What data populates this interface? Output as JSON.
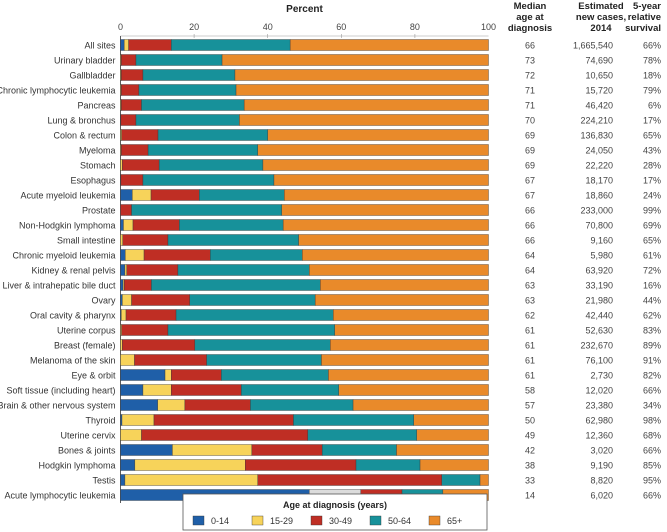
{
  "chart_data": {
    "type": "bar",
    "orientation": "horizontal-stacked",
    "title": "Percent",
    "xlim": [
      0,
      100
    ],
    "xticks": [
      0,
      20,
      40,
      60,
      80,
      100
    ],
    "grid": false,
    "legend": {
      "title": "Age at diagnosis (years)",
      "placement": "bottom"
    },
    "series": [
      {
        "name": "0-14",
        "color": "#1f5fa8"
      },
      {
        "name": "15-29",
        "color": "#f7d35a"
      },
      {
        "name": "30-49",
        "color": "#bf2e24"
      },
      {
        "name": "50-64",
        "color": "#17919a"
      },
      {
        "name": "65+",
        "color": "#e98a2a"
      }
    ],
    "columns": [
      "Median age at diagnosis",
      "Estimated new cases, 2014",
      "5-year relative survival"
    ],
    "column_headers": [
      [
        "Median",
        "age at",
        "diagnosis"
      ],
      [
        "Estimated",
        "new cases,",
        "2014"
      ],
      [
        "5-year",
        "relative",
        "survival"
      ]
    ],
    "rows": [
      {
        "label": "All sites",
        "values": [
          1,
          1.2,
          11.6,
          32.3,
          53.9
        ],
        "median_age": "66",
        "new_cases": "1,665,540",
        "survival": "66%"
      },
      {
        "label": "Urinary bladder",
        "values": [
          0,
          0.2,
          4,
          23.4,
          72.4
        ],
        "median_age": "73",
        "new_cases": "74,690",
        "survival": "78%"
      },
      {
        "label": "Gallbladder",
        "values": [
          0,
          0.2,
          5.9,
          25,
          68.9
        ],
        "median_age": "72",
        "new_cases": "10,650",
        "survival": "18%"
      },
      {
        "label": "Chronic lymphocytic leukemia",
        "values": [
          0,
          0.2,
          4.8,
          26.4,
          68.6
        ],
        "median_age": "71",
        "new_cases": "15,720",
        "survival": "79%"
      },
      {
        "label": "Pancreas",
        "values": [
          0,
          0.2,
          5.5,
          27.9,
          66.4
        ],
        "median_age": "71",
        "new_cases": "46,420",
        "survival": "6%"
      },
      {
        "label": "Lung & bronchus",
        "values": [
          0,
          0.1,
          4.1,
          28.1,
          67.7
        ],
        "median_age": "70",
        "new_cases": "224,210",
        "survival": "17%"
      },
      {
        "label": "Colon & rectum",
        "values": [
          0,
          0.3,
          9.9,
          29.8,
          60
        ],
        "median_age": "69",
        "new_cases": "136,830",
        "survival": "65%"
      },
      {
        "label": "Myeloma",
        "values": [
          0,
          0.2,
          7.3,
          29.8,
          62.7
        ],
        "median_age": "69",
        "new_cases": "24,050",
        "survival": "43%"
      },
      {
        "label": "Stomach",
        "values": [
          0,
          0.5,
          10,
          28.2,
          61.3
        ],
        "median_age": "69",
        "new_cases": "22,220",
        "survival": "28%"
      },
      {
        "label": "Esophagus",
        "values": [
          0,
          0.1,
          6,
          35.6,
          58.3
        ],
        "median_age": "67",
        "new_cases": "18,170",
        "survival": "17%"
      },
      {
        "label": "Acute myeloid leukemia",
        "values": [
          3.2,
          5.1,
          13.1,
          23.1,
          55.5
        ],
        "median_age": "67",
        "new_cases": "18,860",
        "survival": "24%"
      },
      {
        "label": "Prostate",
        "values": [
          0,
          0,
          3,
          40.8,
          56.2
        ],
        "median_age": "66",
        "new_cases": "233,000",
        "survival": "99%"
      },
      {
        "label": "Non-Hodgkin lymphoma",
        "values": [
          0.8,
          2.6,
          12.6,
          28.2,
          55.8
        ],
        "median_age": "66",
        "new_cases": "70,800",
        "survival": "69%"
      },
      {
        "label": "Small intestine",
        "values": [
          0,
          0.6,
          12.3,
          35.5,
          51.6
        ],
        "median_age": "66",
        "new_cases": "9,160",
        "survival": "65%"
      },
      {
        "label": "Chronic myeloid leukemia",
        "values": [
          1.3,
          5.1,
          18,
          25,
          50.6
        ],
        "median_age": "64",
        "new_cases": "5,980",
        "survival": "61%"
      },
      {
        "label": "Kidney & renal pelvis",
        "values": [
          1.2,
          0.5,
          13.9,
          35.7,
          48.7
        ],
        "median_age": "64",
        "new_cases": "63,920",
        "survival": "72%"
      },
      {
        "label": "Liver & intrahepatic bile duct",
        "values": [
          0.7,
          0.3,
          7.4,
          45.9,
          45.7
        ],
        "median_age": "63",
        "new_cases": "33,190",
        "survival": "16%"
      },
      {
        "label": "Ovary",
        "values": [
          0.5,
          2.5,
          15.8,
          34.1,
          47.1
        ],
        "median_age": "63",
        "new_cases": "21,980",
        "survival": "44%"
      },
      {
        "label": "Oral cavity & pharynx",
        "values": [
          0.2,
          1.3,
          13.6,
          42.7,
          42.2
        ],
        "median_age": "62",
        "new_cases": "42,440",
        "survival": "62%"
      },
      {
        "label": "Uterine corpus",
        "values": [
          0,
          0.3,
          12.6,
          45.3,
          41.8
        ],
        "median_age": "61",
        "new_cases": "52,630",
        "survival": "83%"
      },
      {
        "label": "Breast (female)",
        "values": [
          0,
          0.5,
          19.7,
          36.8,
          43
        ],
        "median_age": "61",
        "new_cases": "232,670",
        "survival": "89%"
      },
      {
        "label": "Melanoma of the skin",
        "values": [
          0,
          3.8,
          19.6,
          31.2,
          45.4
        ],
        "median_age": "61",
        "new_cases": "76,100",
        "survival": "91%"
      },
      {
        "label": "Eye & orbit",
        "values": [
          12.1,
          1.7,
          13.6,
          29.1,
          43.5
        ],
        "median_age": "61",
        "new_cases": "2,730",
        "survival": "82%"
      },
      {
        "label": "Soft tissue (including heart)",
        "values": [
          6.1,
          7.7,
          19,
          26.5,
          40.7
        ],
        "median_age": "58",
        "new_cases": "12,020",
        "survival": "66%"
      },
      {
        "label": "Brain & other nervous system",
        "values": [
          10.1,
          7.4,
          17.8,
          27.9,
          36.8
        ],
        "median_age": "57",
        "new_cases": "23,380",
        "survival": "34%"
      },
      {
        "label": "Thyroid",
        "values": [
          0.4,
          8.7,
          37.9,
          32.7,
          20.3
        ],
        "median_age": "50",
        "new_cases": "62,980",
        "survival": "98%"
      },
      {
        "label": "Uterine cervix",
        "values": [
          0,
          5.7,
          45.2,
          29.6,
          19.5
        ],
        "median_age": "49",
        "new_cases": "12,360",
        "survival": "68%"
      },
      {
        "label": "Bones & joints",
        "values": [
          14.1,
          21.6,
          19.1,
          20.2,
          25
        ],
        "median_age": "42",
        "new_cases": "3,020",
        "survival": "66%"
      },
      {
        "label": "Hodgkin lymphoma",
        "values": [
          3.9,
          30,
          30.1,
          17.4,
          18.6
        ],
        "median_age": "38",
        "new_cases": "9,190",
        "survival": "85%"
      },
      {
        "label": "Testis",
        "values": [
          1.2,
          36.1,
          50,
          10.4,
          2.3
        ],
        "median_age": "33",
        "new_cases": "8,820",
        "survival": "95%"
      },
      {
        "label": "Acute lymphocytic leukemia",
        "values": [
          51.3,
          14,
          11.2,
          11.1,
          12.4
        ],
        "median_age": "14",
        "new_cases": "6,020",
        "survival": "66%",
        "segment_colors": {
          "1": "#dcdcdc"
        }
      }
    ]
  }
}
